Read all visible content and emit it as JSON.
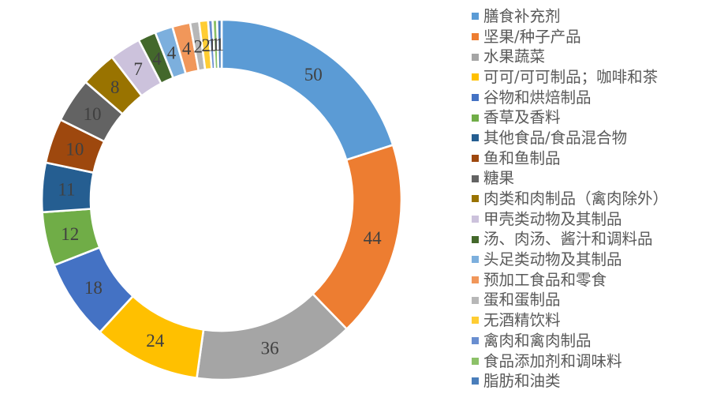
{
  "chart_data": {
    "type": "pie",
    "subtype": "donut",
    "title": "",
    "legend_position": "right",
    "direction": "clockwise",
    "start_angle_deg": 0,
    "hole_ratio": 0.73,
    "total": 249,
    "categories": [
      "膳食补充剂",
      "坚果/种子产品",
      "水果蔬菜",
      "可可/可可制品；咖啡和茶",
      "谷物和烘焙制品",
      "香草及香料",
      "其他食品/食品混合物",
      "鱼和鱼制品",
      "糖果",
      "肉类和肉制品（禽肉除外）",
      "甲壳类动物及其制品",
      "汤、肉汤、酱汁和调料品",
      "头足类动物及其制品",
      "预加工食品和零食",
      "蛋和蛋制品",
      "无酒精饮料",
      "禽肉和禽肉制品",
      "食品添加剂和调味料",
      "脂肪和油类"
    ],
    "values": [
      50,
      44,
      36,
      24,
      18,
      12,
      11,
      10,
      10,
      8,
      7,
      4,
      4,
      4,
      2,
      2,
      1,
      1,
      1
    ],
    "colors": [
      "#5B9BD5",
      "#ED7D31",
      "#A5A5A5",
      "#FFC000",
      "#4472C4",
      "#70AD47",
      "#255E91",
      "#9E480E",
      "#636363",
      "#997300",
      "#CCC2DC",
      "#43682B",
      "#7CAFDD",
      "#F1975A",
      "#B7B7B7",
      "#FFCD33",
      "#698ED0",
      "#8CC168",
      "#4A7EBB"
    ],
    "data_label_color": "#404040",
    "legend_text_color": "#595959",
    "slice_border_color": "#FFFFFF",
    "background": "#FFFFFF"
  }
}
